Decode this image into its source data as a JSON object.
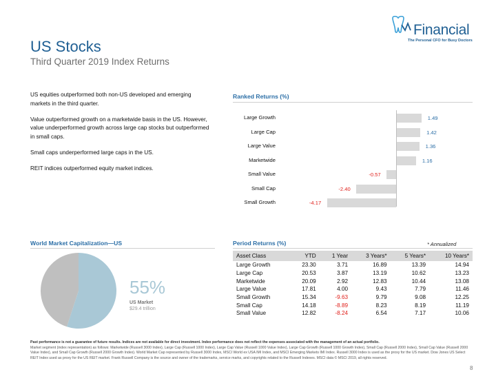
{
  "logo": {
    "brand": "Financial",
    "tagline": "The Personal CFO for Busy Doctors"
  },
  "header": {
    "title": "US Stocks",
    "subtitle": "Third Quarter 2019 Index Returns"
  },
  "bullets": [
    "US equities outperformed both non-US developed and emerging markets in the third quarter.",
    "Value outperformed growth on a marketwide basis in the US. However, value underperformed growth across large cap stocks but outperformed in small caps.",
    "Small caps underperformed large caps in the US.",
    "REIT indices outperformed equity market indices."
  ],
  "ranked": {
    "title": "Ranked Returns (%)"
  },
  "chart_data": [
    {
      "type": "bar",
      "title": "Ranked Returns (%)",
      "categories": [
        "Large Growth",
        "Large Cap",
        "Large Value",
        "Marketwide",
        "Small Value",
        "Small Cap",
        "Small Growth"
      ],
      "values": [
        1.49,
        1.42,
        1.36,
        1.16,
        -0.57,
        -2.4,
        -4.17
      ],
      "value_labels": [
        "1.49",
        "1.42",
        "1.36",
        "1.16",
        "-0.57",
        "-2.40",
        "-4.17"
      ],
      "orientation": "horizontal",
      "grid": false
    },
    {
      "type": "pie",
      "title": "World Market Capitalization—US",
      "values": [
        55,
        45
      ],
      "colors": [
        "#a9c8d6",
        "#bfbfbf"
      ]
    }
  ],
  "world": {
    "title": "World Market Capitalization—US",
    "percent": "55%",
    "label": "US Market",
    "sublabel": "$29.4 trillion"
  },
  "periods": {
    "title": "Period Returns (%)",
    "note": "* Annualized",
    "headers": [
      "Asset Class",
      "YTD",
      "1 Year",
      "3 Years*",
      "5 Years*",
      "10 Years*"
    ],
    "rows": [
      [
        "Large Growth",
        "23.30",
        "3.71",
        "16.89",
        "13.39",
        "14.94"
      ],
      [
        "Large Cap",
        "20.53",
        "3.87",
        "13.19",
        "10.62",
        "13.23"
      ],
      [
        "Marketwide",
        "20.09",
        "2.92",
        "12.83",
        "10.44",
        "13.08"
      ],
      [
        "Large Value",
        "17.81",
        "4.00",
        "9.43",
        "7.79",
        "11.46"
      ],
      [
        "Small Growth",
        "15.34",
        "-9.63",
        "9.79",
        "9.08",
        "12.25"
      ],
      [
        "Small Cap",
        "14.18",
        "-8.89",
        "8.23",
        "8.19",
        "11.19"
      ],
      [
        "Small Value",
        "12.82",
        "-8.24",
        "6.54",
        "7.17",
        "10.06"
      ]
    ]
  },
  "footnote": {
    "bold": "Past performance is not a guarantee of future results. Indices are not available for direct investment. Index performance does not reflect the expenses associated with the management of an actual portfolio.",
    "body": "Market segment (index representation) as follows: Marketwide (Russell 3000 Index), Large Cap (Russell 1000 Index), Large Cap Value (Russell 1000 Value Index), Large Cap Growth (Russell 1000 Growth Index), Small Cap (Russell 2000 Index), Small Cap Value (Russell 2000 Value Index), and Small Cap Growth (Russell 2000 Growth Index). World Market Cap represented by Russell 3000 Index, MSCI World ex USA IMI Index, and MSCI Emerging Markets IMI Index. Russell 3000 Index is used as the proxy for the US market. Dow Jones US Select REIT Index used as proxy for the US REIT market. Frank Russell Company is the source and owner of the trademarks, service marks, and copyrights related to the Russell Indexes. MSCI data © MSCI 2019, all rights reserved."
  },
  "page": "8"
}
